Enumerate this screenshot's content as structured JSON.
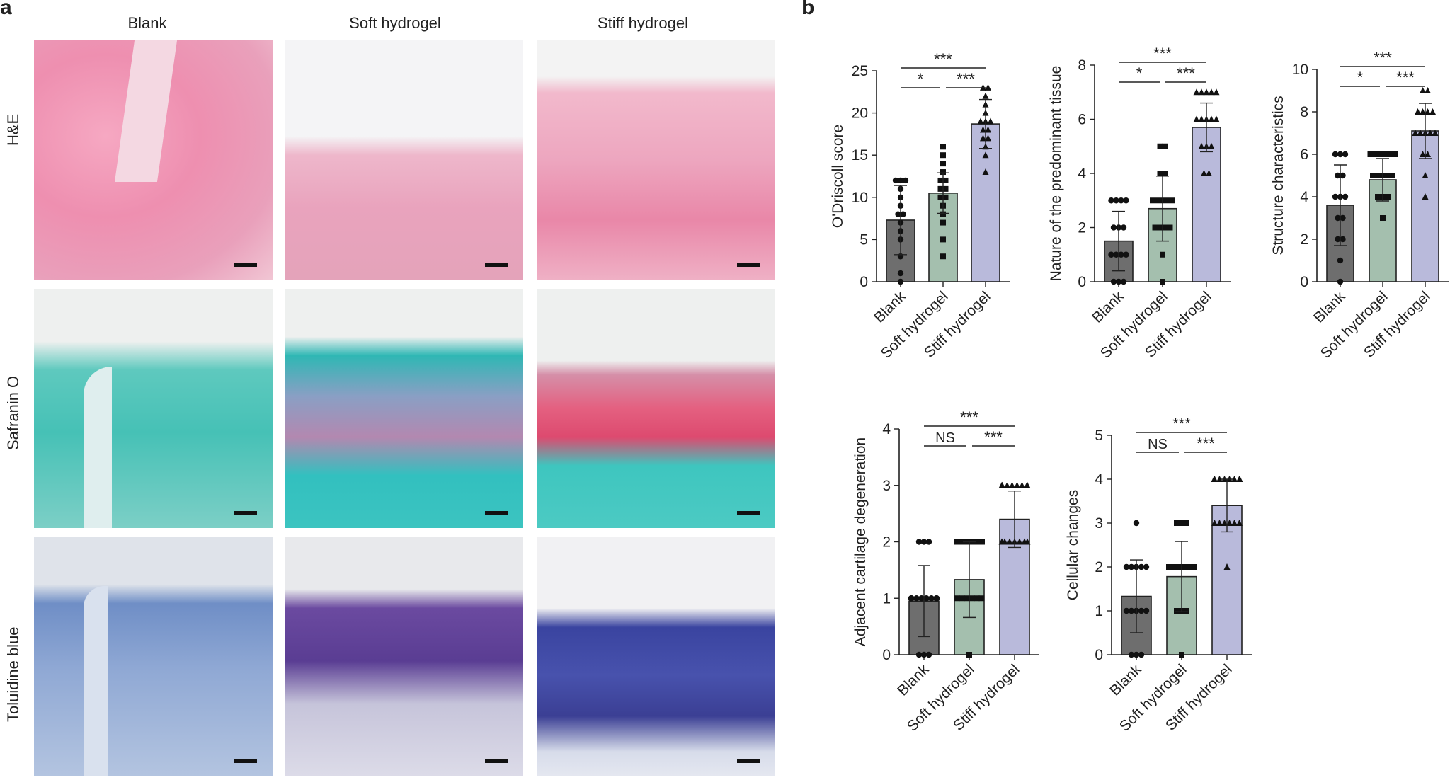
{
  "panel_a": {
    "letter": "a",
    "columns": [
      "Blank",
      "Soft hydrogel",
      "Stiff hydrogel"
    ],
    "rows": [
      "H&E",
      "Safranin O",
      "Toluidine blue"
    ]
  },
  "panel_b": {
    "letter": "b"
  },
  "colors": {
    "blank": "#6e6e6e",
    "soft": "#a4bfae",
    "stiff": "#b9badb"
  },
  "chart_data": [
    {
      "type": "bar",
      "categories": [
        "Blank",
        "Soft hydrogel",
        "Stiff hydrogel"
      ],
      "values": [
        7.3,
        10.5,
        18.7
      ],
      "sd": [
        4.1,
        2.4,
        2.9
      ],
      "points": [
        [
          0,
          1,
          3,
          5,
          6,
          7,
          8,
          8,
          9,
          10,
          11,
          12,
          12,
          12
        ],
        [
          3,
          5,
          7,
          8,
          9,
          10,
          10,
          11,
          11,
          12,
          12,
          13,
          14,
          15,
          16
        ],
        [
          13,
          15,
          16,
          17,
          17,
          18,
          18,
          19,
          19,
          19,
          20,
          21,
          22,
          23,
          23
        ]
      ],
      "ylabel": "O'Driscoll score",
      "ylim": [
        0,
        25
      ],
      "yticks": [
        "0",
        "5",
        "10",
        "15",
        "20",
        "25"
      ],
      "sig": [
        {
          "from": 0,
          "to": 1,
          "label": "*"
        },
        {
          "from": 1,
          "to": 2,
          "label": "***"
        },
        {
          "from": 0,
          "to": 2,
          "label": "***"
        }
      ]
    },
    {
      "type": "bar",
      "categories": [
        "Blank",
        "Soft hydrogel",
        "Stiff hydrogel"
      ],
      "values": [
        1.5,
        2.7,
        5.7
      ],
      "sd": [
        1.1,
        1.2,
        0.9
      ],
      "points": [
        [
          0,
          0,
          0,
          1,
          1,
          1,
          1,
          2,
          2,
          2,
          3,
          3,
          3,
          3
        ],
        [
          0,
          1,
          2,
          2,
          2,
          2,
          3,
          3,
          3,
          3,
          3,
          4,
          4,
          5,
          5
        ],
        [
          4,
          4,
          5,
          5,
          5,
          6,
          6,
          6,
          6,
          6,
          7,
          7,
          7,
          7,
          7
        ]
      ],
      "ylabel": "Nature of the predominant tissue",
      "ylim": [
        0,
        8
      ],
      "yticks": [
        "0",
        "2",
        "4",
        "6",
        "8"
      ],
      "sig": [
        {
          "from": 0,
          "to": 1,
          "label": "*"
        },
        {
          "from": 1,
          "to": 2,
          "label": "***"
        },
        {
          "from": 0,
          "to": 2,
          "label": "***"
        }
      ]
    },
    {
      "type": "bar",
      "categories": [
        "Blank",
        "Soft hydrogel",
        "Stiff hydrogel"
      ],
      "values": [
        3.6,
        4.8,
        7.1
      ],
      "sd": [
        1.9,
        1.0,
        1.3
      ],
      "points": [
        [
          0,
          1,
          2,
          2,
          3,
          3,
          4,
          4,
          4,
          5,
          5,
          6,
          6,
          6
        ],
        [
          3,
          4,
          4,
          4,
          5,
          5,
          5,
          5,
          5,
          6,
          6,
          6,
          6,
          6,
          6
        ],
        [
          4,
          5,
          6,
          6,
          7,
          7,
          7,
          7,
          7,
          8,
          8,
          8,
          8,
          9,
          9
        ]
      ],
      "ylabel": "Structure characteristics",
      "ylim": [
        0,
        10
      ],
      "yticks": [
        "0",
        "2",
        "4",
        "6",
        "8",
        "10"
      ],
      "sig": [
        {
          "from": 0,
          "to": 1,
          "label": "*"
        },
        {
          "from": 1,
          "to": 2,
          "label": "***"
        },
        {
          "from": 0,
          "to": 2,
          "label": "***"
        }
      ]
    },
    {
      "type": "bar",
      "categories": [
        "Blank",
        "Soft hydrogel",
        "Stiff hydrogel"
      ],
      "values": [
        0.95,
        1.33,
        2.4
      ],
      "sd": [
        0.63,
        0.67,
        0.5
      ],
      "points": [
        [
          0,
          0,
          0,
          1,
          1,
          1,
          1,
          1,
          1,
          1,
          1,
          2,
          2,
          2
        ],
        [
          0,
          1,
          1,
          1,
          1,
          1,
          1,
          2,
          2,
          2,
          2,
          2,
          2,
          2,
          2
        ],
        [
          2,
          2,
          2,
          2,
          2,
          2,
          2,
          3,
          3,
          3,
          3,
          3,
          3,
          3,
          3
        ]
      ],
      "ylabel": "Adjacent cartilage degeneration",
      "ylim": [
        0,
        4
      ],
      "yticks": [
        "0",
        "1",
        "2",
        "3",
        "4"
      ],
      "sig": [
        {
          "from": 0,
          "to": 1,
          "label": "NS"
        },
        {
          "from": 1,
          "to": 2,
          "label": "***"
        },
        {
          "from": 0,
          "to": 2,
          "label": "***"
        }
      ]
    },
    {
      "type": "bar",
      "categories": [
        "Blank",
        "Soft hydrogel",
        "Stiff hydrogel"
      ],
      "values": [
        1.33,
        1.78,
        3.4
      ],
      "sd": [
        0.83,
        0.8,
        0.6
      ],
      "points": [
        [
          0,
          0,
          0,
          1,
          1,
          1,
          1,
          1,
          2,
          2,
          2,
          2,
          2,
          3
        ],
        [
          0,
          1,
          1,
          1,
          2,
          2,
          2,
          2,
          2,
          2,
          2,
          2,
          3,
          3,
          3
        ],
        [
          2,
          3,
          3,
          3,
          3,
          3,
          3,
          4,
          4,
          4,
          4,
          4,
          4,
          4,
          4
        ]
      ],
      "ylabel": "Cellular changes",
      "ylim": [
        0,
        5
      ],
      "yticks": [
        "0",
        "1",
        "2",
        "3",
        "4",
        "5"
      ],
      "sig": [
        {
          "from": 0,
          "to": 1,
          "label": "NS"
        },
        {
          "from": 1,
          "to": 2,
          "label": "***"
        },
        {
          "from": 0,
          "to": 2,
          "label": "***"
        }
      ]
    }
  ]
}
